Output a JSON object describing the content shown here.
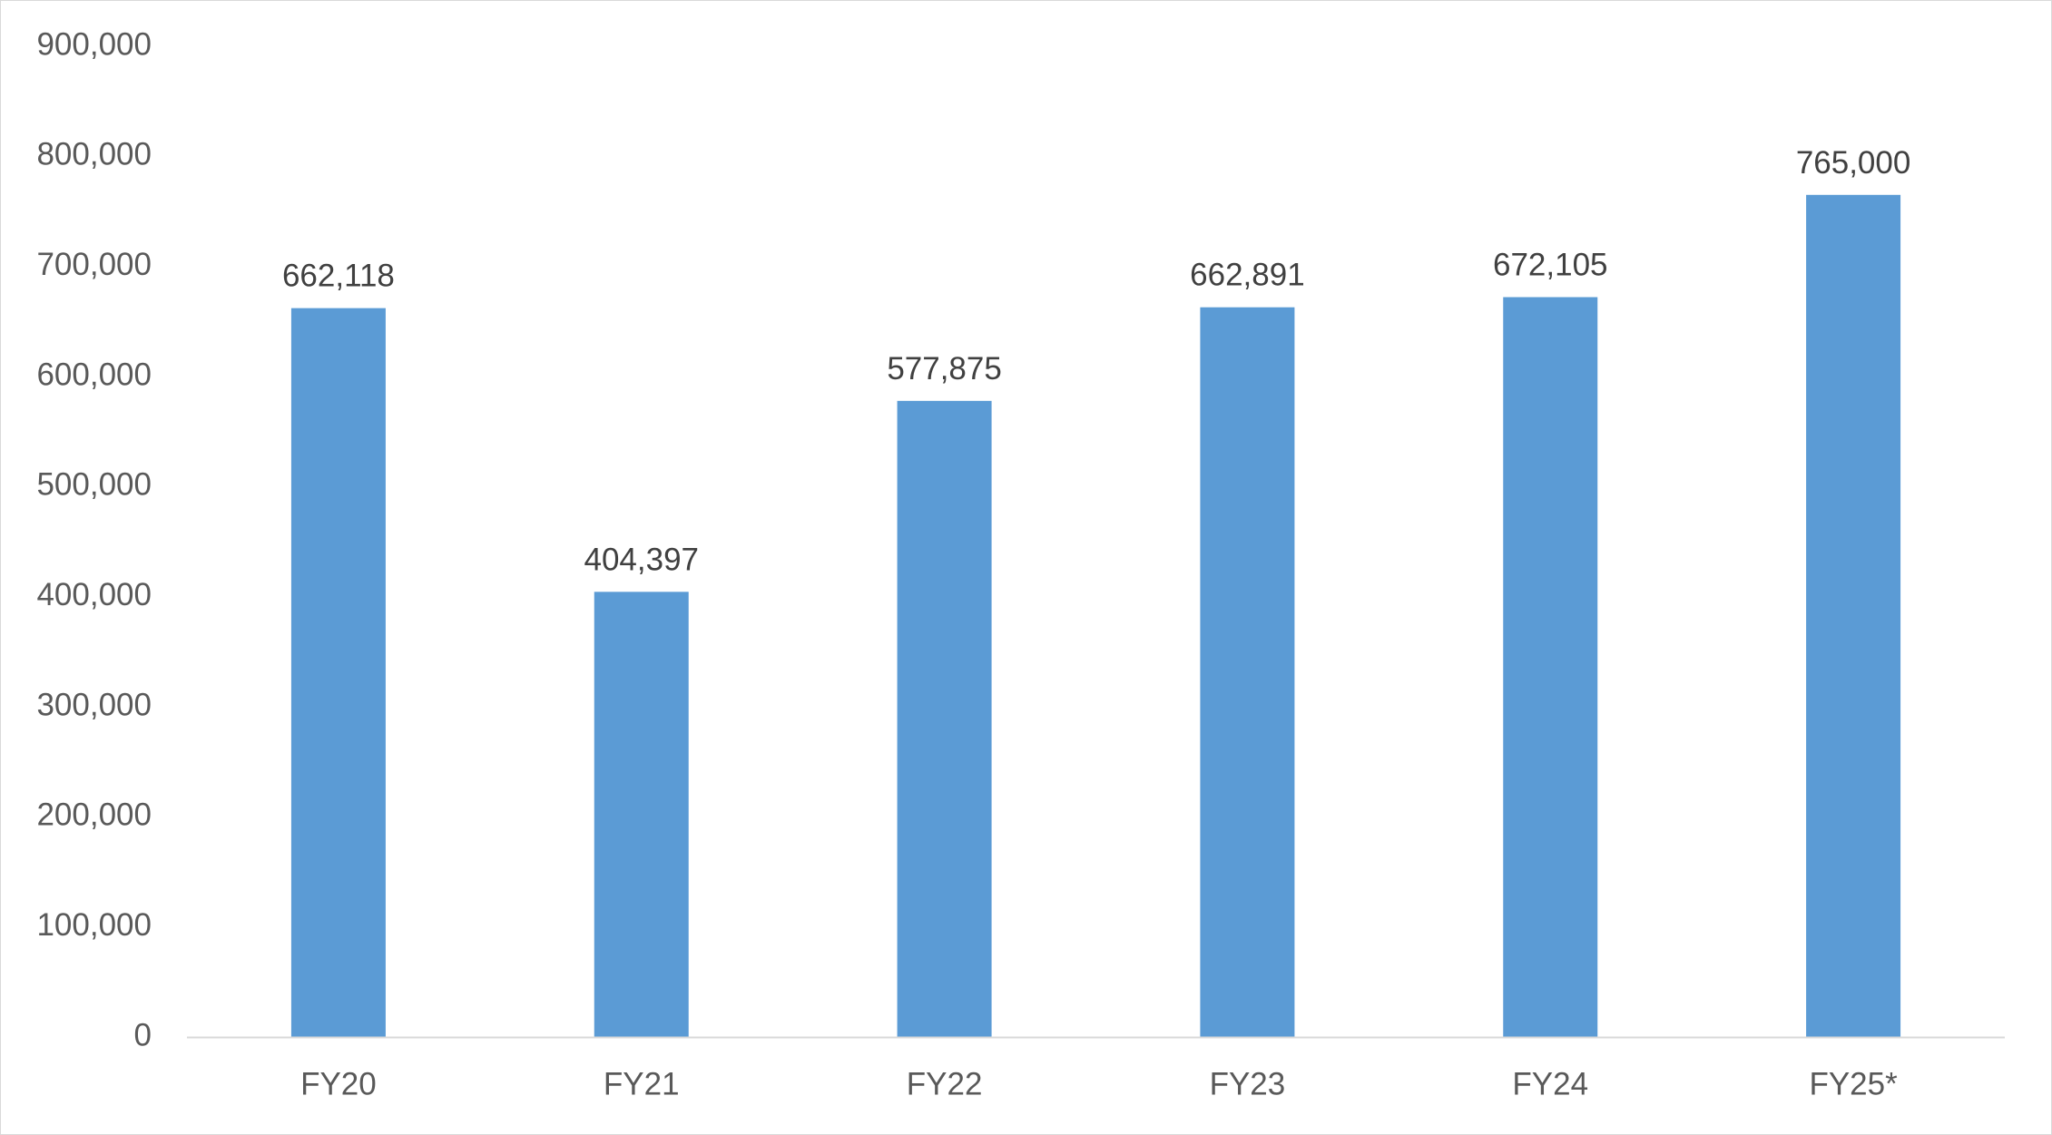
{
  "chart_data": {
    "type": "bar",
    "title": "",
    "xlabel": "",
    "ylabel": "",
    "categories": [
      "FY20",
      "FY21",
      "FY22",
      "FY23",
      "FY24",
      "FY25*"
    ],
    "values": [
      662118,
      404397,
      577875,
      662891,
      672105,
      765000
    ],
    "data_labels": [
      "662,118",
      "404,397",
      "577,875",
      "662,891",
      "672,105",
      "765,000"
    ],
    "ylim": [
      0,
      900000
    ],
    "y_ticks": [
      0,
      100000,
      200000,
      300000,
      400000,
      500000,
      600000,
      700000,
      800000,
      900000
    ],
    "y_tick_labels": [
      "0",
      "100,000",
      "200,000",
      "300,000",
      "400,000",
      "500,000",
      "600,000",
      "700,000",
      "800,000",
      "900,000"
    ],
    "grid": false,
    "legend": "none",
    "colors": {
      "bar": "#5b9bd5",
      "axis": "#d9d9d9",
      "tick_text": "#595959",
      "data_label_text": "#404040",
      "background": "#ffffff"
    }
  }
}
